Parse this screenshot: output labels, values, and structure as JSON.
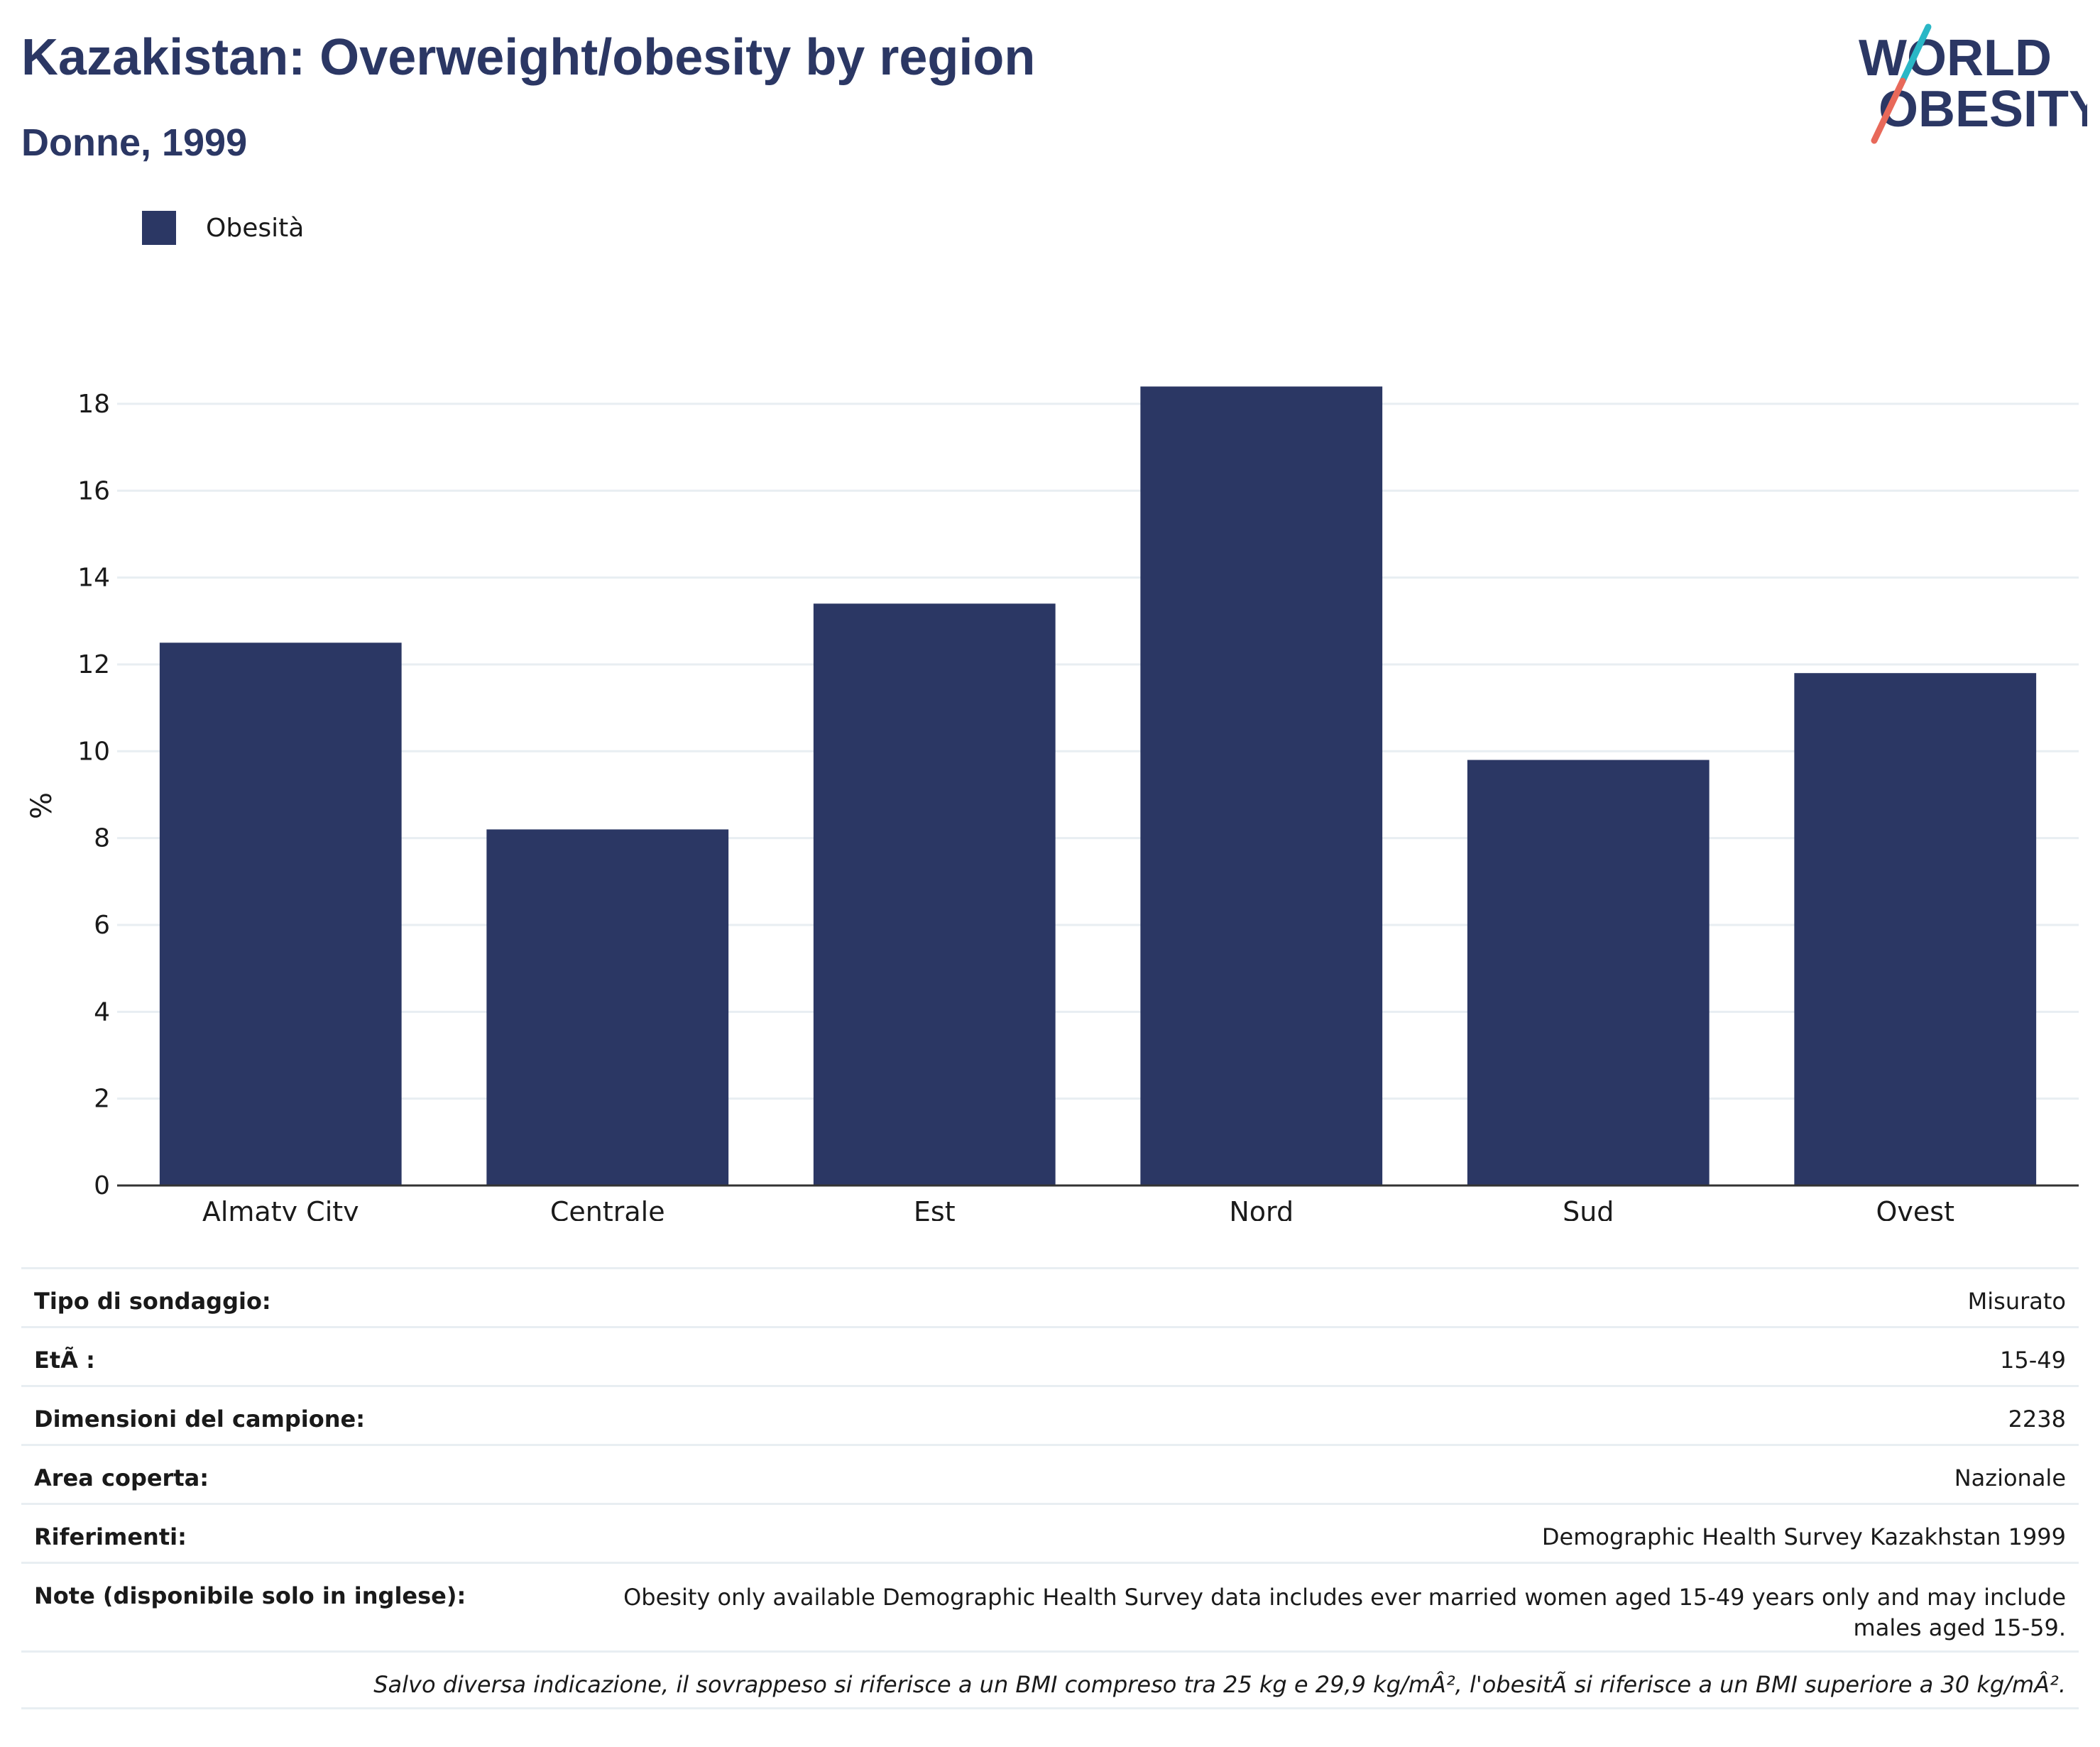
{
  "header": {
    "title": "Kazakistan: Overweight/obesity by region",
    "subtitle": "Donne, 1999"
  },
  "logo": {
    "line1": "WORLD",
    "line2": "OBESITY",
    "colors": {
      "text": "#2b3764",
      "slash_top": "#2ab7c6",
      "slash_bottom": "#e8695a"
    }
  },
  "colors": {
    "bar": "#2b3764",
    "grid": "#e8eef2",
    "axis": "#333333"
  },
  "chart_data": {
    "type": "bar",
    "categories": [
      "Almaty City",
      "Centrale",
      "Est",
      "Nord",
      "Sud",
      "Ovest"
    ],
    "series": [
      {
        "name": "Obesità",
        "values": [
          12.5,
          8.2,
          13.4,
          18.4,
          9.8,
          11.8
        ]
      }
    ],
    "ylabel": "%",
    "xlabel": "",
    "ylim": [
      0,
      18.8
    ],
    "yticks": [
      0,
      2,
      4,
      6,
      8,
      10,
      12,
      14,
      16,
      18
    ],
    "grid": true,
    "legend_position": "top-left"
  },
  "info_table": [
    {
      "label": "Tipo di sondaggio:",
      "value": "Misurato"
    },
    {
      "label": "EtÃ :",
      "value": "15-49"
    },
    {
      "label": "Dimensioni del campione:",
      "value": "2238"
    },
    {
      "label": "Area coperta:",
      "value": "Nazionale"
    },
    {
      "label": "Riferimenti:",
      "value": "Demographic Health Survey Kazakhstan 1999"
    },
    {
      "label": "Note (disponibile solo in inglese):",
      "value": "Obesity only available Demographic Health Survey data includes ever married women aged 15-49 years only and may include males aged 15-59."
    }
  ],
  "footnote": "Salvo diversa indicazione, il sovrappeso si riferisce a un BMI compreso tra 25 kg e 29,9 kg/mÂ², l'obesitÃ  si riferisce a un BMI superiore a 30 kg/mÂ²."
}
